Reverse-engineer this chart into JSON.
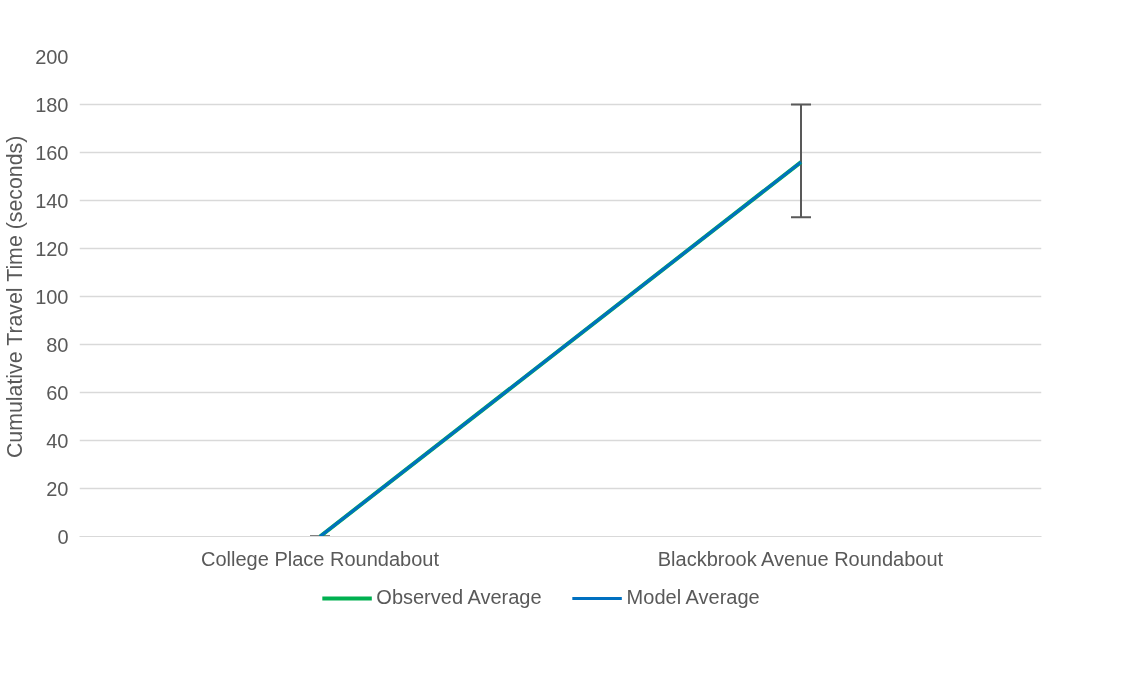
{
  "chart_data": {
    "type": "line",
    "ylabel": "Cumulative Travel Time (seconds)",
    "categories": [
      "College Place Roundabout",
      "Blackbrook Avenue Roundabout"
    ],
    "series": [
      {
        "name": "Observed Average",
        "color": "#00b050",
        "values": [
          0,
          156
        ],
        "errors": [
          0,
          [
            133,
            180
          ]
        ]
      },
      {
        "name": "Model Average",
        "color": "#0070c0",
        "values": [
          0,
          156
        ]
      }
    ],
    "ylim": [
      0,
      200
    ],
    "yticks": [
      0,
      20,
      40,
      60,
      80,
      100,
      120,
      140,
      160,
      180,
      200
    ],
    "grid": "y",
    "legend": "bottom",
    "marker": "none",
    "line_style": "solid"
  }
}
